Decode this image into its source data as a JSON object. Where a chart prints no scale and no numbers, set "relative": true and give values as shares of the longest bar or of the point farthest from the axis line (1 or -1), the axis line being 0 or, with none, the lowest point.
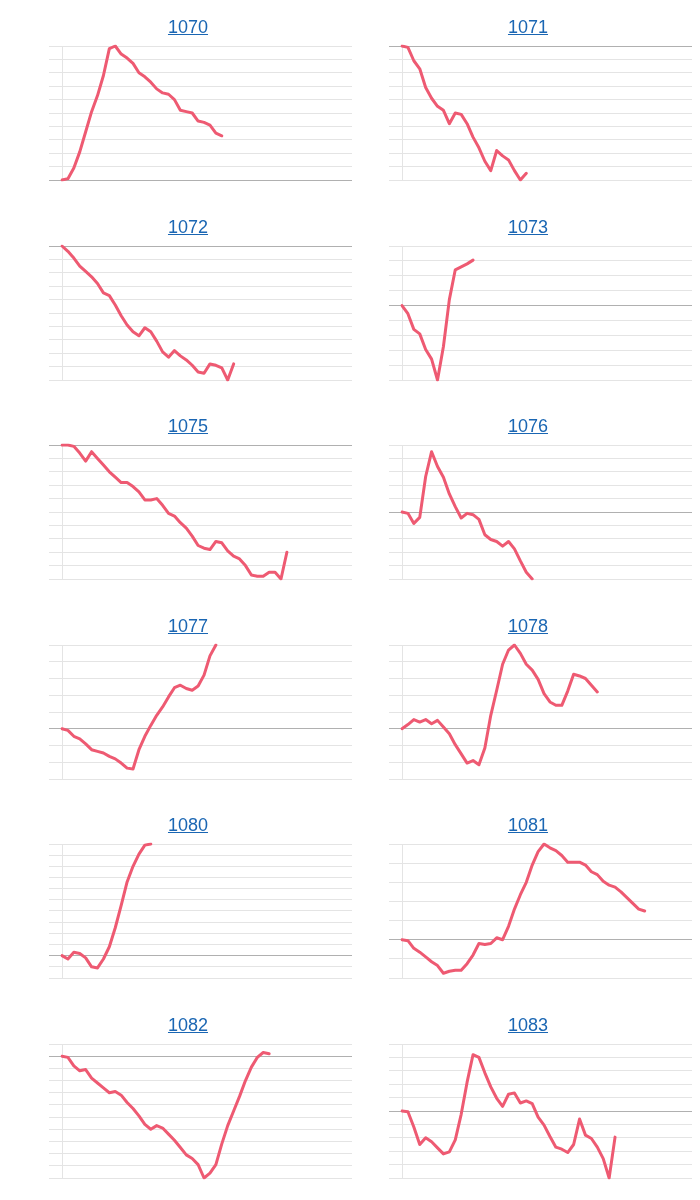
{
  "chart_data": [
    {
      "type": "line",
      "title": "1070",
      "relative": true,
      "grid": "y",
      "color": "#ee5a72",
      "categories": [
        null,
        null,
        null,
        null,
        null,
        null,
        null,
        null,
        null,
        null,
        null,
        null,
        null,
        null,
        null,
        null,
        null,
        null,
        null,
        null,
        null,
        null,
        null,
        null,
        null,
        null,
        null,
        null,
        null,
        null,
        null,
        null,
        null,
        null,
        null,
        null,
        null,
        null,
        null,
        null,
        null,
        null,
        null,
        null,
        null,
        null,
        null,
        null,
        null,
        null
      ],
      "values": [
        0,
        0.01,
        0.09,
        0.21,
        0.36,
        0.51,
        0.63,
        0.78,
        0.98,
        1.0,
        0.94,
        0.91,
        0.87,
        0.8,
        0.77,
        0.73,
        0.68,
        0.65,
        0.64,
        0.6,
        0.52,
        0.51,
        0.5,
        0.44,
        0.43,
        0.41,
        0.35,
        0.33,
        null,
        null,
        null,
        null,
        null,
        null,
        null,
        null,
        null,
        null,
        null,
        null,
        null,
        null,
        null,
        null,
        null,
        null,
        null,
        null,
        null,
        null
      ]
    },
    {
      "type": "line",
      "title": "1071",
      "relative": true,
      "grid": "y",
      "color": "#ee5a72",
      "categories": [
        null,
        null,
        null,
        null,
        null,
        null,
        null,
        null,
        null,
        null,
        null,
        null,
        null,
        null,
        null,
        null,
        null,
        null,
        null,
        null,
        null,
        null,
        null,
        null,
        null,
        null,
        null,
        null,
        null,
        null,
        null,
        null,
        null,
        null,
        null,
        null,
        null,
        null,
        null,
        null,
        null,
        null,
        null,
        null,
        null,
        null,
        null,
        null,
        null,
        null
      ],
      "values": [
        0,
        -0.01,
        -0.11,
        -0.17,
        -0.31,
        -0.39,
        -0.45,
        -0.48,
        -0.58,
        -0.5,
        -0.51,
        -0.58,
        -0.68,
        -0.76,
        -0.86,
        -0.93,
        -0.78,
        -0.82,
        -0.85,
        -0.93,
        -1.0,
        -0.95,
        null,
        null,
        null,
        null,
        null,
        null,
        null,
        null,
        null,
        null,
        null,
        null,
        null,
        null,
        null,
        null,
        null,
        null,
        null,
        null,
        null,
        null,
        null,
        null,
        null,
        null,
        null,
        null
      ]
    },
    {
      "type": "line",
      "title": "1072",
      "relative": true,
      "grid": "y",
      "color": "#ee5a72",
      "categories": [
        null,
        null,
        null,
        null,
        null,
        null,
        null,
        null,
        null,
        null,
        null,
        null,
        null,
        null,
        null,
        null,
        null,
        null,
        null,
        null,
        null,
        null,
        null,
        null,
        null,
        null,
        null,
        null,
        null,
        null,
        null,
        null,
        null,
        null,
        null,
        null,
        null,
        null,
        null,
        null,
        null,
        null,
        null,
        null,
        null,
        null,
        null,
        null,
        null,
        null
      ],
      "values": [
        0,
        -0.04,
        -0.09,
        -0.15,
        -0.19,
        -0.23,
        -0.28,
        -0.35,
        -0.37,
        -0.44,
        -0.52,
        -0.59,
        -0.64,
        -0.67,
        -0.61,
        -0.64,
        -0.71,
        -0.79,
        -0.83,
        -0.78,
        -0.82,
        -0.85,
        -0.89,
        -0.94,
        -0.95,
        -0.88,
        -0.89,
        -0.91,
        -1.0,
        -0.88,
        null,
        null,
        null,
        null,
        null,
        null,
        null,
        null,
        null,
        null,
        null,
        null,
        null,
        null,
        null,
        null,
        null,
        null,
        null,
        null
      ]
    },
    {
      "type": "line",
      "title": "1073",
      "relative": true,
      "grid": "y",
      "color": "#ee5a72",
      "categories": [
        null,
        null,
        null,
        null,
        null,
        null,
        null,
        null,
        null,
        null,
        null,
        null,
        null,
        null,
        null,
        null,
        null,
        null,
        null,
        null,
        null,
        null,
        null,
        null,
        null,
        null,
        null,
        null,
        null,
        null,
        null,
        null,
        null,
        null,
        null,
        null,
        null,
        null,
        null,
        null,
        null,
        null,
        null,
        null,
        null,
        null,
        null,
        null,
        null,
        null
      ],
      "values": [
        0,
        -0.11,
        -0.32,
        -0.38,
        -0.59,
        -0.72,
        -1.0,
        -0.55,
        0.08,
        0.48,
        0.52,
        0.56,
        0.61,
        null,
        null,
        null,
        null,
        null,
        null,
        null,
        null,
        null,
        null,
        null,
        null,
        null,
        null,
        null,
        null,
        null,
        null,
        null,
        null,
        null,
        null,
        null,
        null,
        null,
        null,
        null,
        null,
        null,
        null,
        null,
        null,
        null,
        null,
        null,
        null,
        null
      ]
    },
    {
      "type": "line",
      "title": "1075",
      "relative": true,
      "grid": "y",
      "color": "#ee5a72",
      "categories": [
        null,
        null,
        null,
        null,
        null,
        null,
        null,
        null,
        null,
        null,
        null,
        null,
        null,
        null,
        null,
        null,
        null,
        null,
        null,
        null,
        null,
        null,
        null,
        null,
        null,
        null,
        null,
        null,
        null,
        null,
        null,
        null,
        null,
        null,
        null,
        null,
        null,
        null,
        null,
        null,
        null,
        null,
        null,
        null,
        null,
        null,
        null,
        null,
        null,
        null
      ],
      "values": [
        0,
        0,
        -0.01,
        -0.06,
        -0.12,
        -0.05,
        -0.1,
        -0.15,
        -0.2,
        -0.24,
        -0.28,
        -0.28,
        -0.31,
        -0.35,
        -0.41,
        -0.41,
        -0.4,
        -0.45,
        -0.51,
        -0.53,
        -0.58,
        -0.62,
        -0.68,
        -0.75,
        -0.77,
        -0.78,
        -0.72,
        -0.73,
        -0.79,
        -0.83,
        -0.85,
        -0.9,
        -0.97,
        -0.98,
        -0.98,
        -0.95,
        -0.95,
        -1.0,
        -0.8,
        null,
        null,
        null,
        null,
        null,
        null,
        null,
        null,
        null,
        null,
        null
      ]
    },
    {
      "type": "line",
      "title": "1076",
      "relative": true,
      "grid": "y",
      "color": "#ee5a72",
      "categories": [
        null,
        null,
        null,
        null,
        null,
        null,
        null,
        null,
        null,
        null,
        null,
        null,
        null,
        null,
        null,
        null,
        null,
        null,
        null,
        null,
        null,
        null,
        null,
        null,
        null,
        null,
        null,
        null,
        null,
        null,
        null,
        null,
        null,
        null,
        null,
        null,
        null,
        null,
        null,
        null,
        null,
        null,
        null,
        null,
        null,
        null,
        null,
        null,
        null,
        null
      ],
      "values": [
        0,
        -0.02,
        -0.17,
        -0.08,
        0.53,
        0.9,
        0.68,
        0.52,
        0.27,
        0.08,
        -0.09,
        -0.02,
        -0.04,
        -0.11,
        -0.34,
        -0.41,
        -0.44,
        -0.51,
        -0.44,
        -0.55,
        -0.73,
        -0.9,
        -1.0,
        null,
        null,
        null,
        null,
        null,
        null,
        null,
        null,
        null,
        null,
        null,
        null,
        null,
        null,
        null,
        null,
        null,
        null,
        null,
        null,
        null,
        null,
        null,
        null,
        null,
        null,
        null
      ]
    },
    {
      "type": "line",
      "title": "1077",
      "relative": true,
      "grid": "y",
      "color": "#ee5a72",
      "categories": [
        null,
        null,
        null,
        null,
        null,
        null,
        null,
        null,
        null,
        null,
        null,
        null,
        null,
        null,
        null,
        null,
        null,
        null,
        null,
        null,
        null,
        null,
        null,
        null,
        null,
        null,
        null,
        null,
        null,
        null,
        null,
        null,
        null,
        null,
        null,
        null,
        null,
        null,
        null,
        null,
        null,
        null,
        null,
        null,
        null,
        null,
        null,
        null,
        null,
        null
      ],
      "values": [
        0,
        -0.02,
        -0.09,
        -0.12,
        -0.18,
        -0.25,
        -0.27,
        -0.29,
        -0.33,
        -0.36,
        -0.41,
        -0.47,
        -0.48,
        -0.25,
        -0.09,
        0.04,
        0.16,
        0.26,
        0.38,
        0.49,
        0.52,
        0.48,
        0.46,
        0.51,
        0.64,
        0.87,
        1.0,
        null,
        null,
        null,
        null,
        null,
        null,
        null,
        null,
        null,
        null,
        null,
        null,
        null,
        null,
        null,
        null,
        null,
        null,
        null,
        null,
        null,
        null,
        null
      ]
    },
    {
      "type": "line",
      "title": "1078",
      "relative": true,
      "grid": "y",
      "color": "#ee5a72",
      "categories": [
        null,
        null,
        null,
        null,
        null,
        null,
        null,
        null,
        null,
        null,
        null,
        null,
        null,
        null,
        null,
        null,
        null,
        null,
        null,
        null,
        null,
        null,
        null,
        null,
        null,
        null,
        null,
        null,
        null,
        null,
        null,
        null,
        null,
        null,
        null,
        null,
        null,
        null,
        null,
        null,
        null,
        null,
        null,
        null,
        null,
        null,
        null,
        null,
        null,
        null
      ],
      "values": [
        0,
        0.05,
        0.11,
        0.08,
        0.11,
        0.06,
        0.1,
        0.02,
        -0.06,
        -0.19,
        -0.3,
        -0.41,
        -0.38,
        -0.43,
        -0.23,
        0.16,
        0.46,
        0.77,
        0.94,
        1.0,
        0.9,
        0.77,
        0.7,
        0.59,
        0.42,
        0.32,
        0.28,
        0.28,
        0.45,
        0.65,
        0.63,
        0.6,
        0.52,
        0.44,
        null,
        null,
        null,
        null,
        null,
        null,
        null,
        null,
        null,
        null,
        null,
        null,
        null,
        null,
        null,
        null
      ]
    },
    {
      "type": "line",
      "title": "1080",
      "relative": true,
      "grid": "y",
      "color": "#ee5a72",
      "categories": [
        null,
        null,
        null,
        null,
        null,
        null,
        null,
        null,
        null,
        null,
        null,
        null,
        null,
        null,
        null,
        null,
        null,
        null,
        null,
        null,
        null,
        null,
        null,
        null,
        null,
        null,
        null,
        null,
        null,
        null,
        null,
        null,
        null,
        null,
        null,
        null,
        null,
        null,
        null,
        null,
        null,
        null,
        null,
        null,
        null,
        null,
        null,
        null,
        null,
        null
      ],
      "values": [
        0,
        -0.03,
        0.03,
        0.02,
        -0.02,
        -0.1,
        -0.11,
        -0.03,
        0.08,
        0.25,
        0.45,
        0.66,
        0.8,
        0.91,
        0.99,
        1.0,
        null,
        null,
        null,
        null,
        null,
        null,
        null,
        null,
        null,
        null,
        null,
        null,
        null,
        null,
        null,
        null,
        null,
        null,
        null,
        null,
        null,
        null,
        null,
        null,
        null,
        null,
        null,
        null,
        null,
        null,
        null,
        null,
        null,
        null
      ]
    },
    {
      "type": "line",
      "title": "1081",
      "relative": true,
      "grid": "y",
      "color": "#ee5a72",
      "categories": [
        null,
        null,
        null,
        null,
        null,
        null,
        null,
        null,
        null,
        null,
        null,
        null,
        null,
        null,
        null,
        null,
        null,
        null,
        null,
        null,
        null,
        null,
        null,
        null,
        null,
        null,
        null,
        null,
        null,
        null,
        null,
        null,
        null,
        null,
        null,
        null,
        null,
        null,
        null,
        null,
        null,
        null,
        null,
        null,
        null,
        null,
        null,
        null,
        null,
        null
      ],
      "values": [
        0,
        -0.01,
        -0.09,
        -0.13,
        -0.18,
        -0.23,
        -0.27,
        -0.35,
        -0.33,
        -0.32,
        -0.32,
        -0.25,
        -0.16,
        -0.04,
        -0.05,
        -0.04,
        0.02,
        0,
        0.14,
        0.32,
        0.47,
        0.6,
        0.78,
        0.92,
        1.0,
        0.96,
        0.93,
        0.88,
        0.81,
        0.81,
        0.81,
        0.78,
        0.71,
        0.68,
        0.61,
        0.57,
        0.55,
        0.5,
        0.44,
        0.38,
        0.32,
        0.3,
        null,
        null,
        null,
        null,
        null,
        null,
        null,
        null
      ]
    },
    {
      "type": "line",
      "title": "1082",
      "relative": true,
      "grid": "y",
      "color": "#ee5a72",
      "categories": [
        null,
        null,
        null,
        null,
        null,
        null,
        null,
        null,
        null,
        null,
        null,
        null,
        null,
        null,
        null,
        null,
        null,
        null,
        null,
        null,
        null,
        null,
        null,
        null,
        null,
        null,
        null,
        null,
        null,
        null,
        null,
        null,
        null,
        null,
        null,
        null,
        null,
        null,
        null,
        null,
        null,
        null,
        null,
        null,
        null,
        null,
        null,
        null,
        null,
        null
      ],
      "values": [
        0,
        -0.01,
        -0.08,
        -0.12,
        -0.11,
        -0.18,
        -0.22,
        -0.26,
        -0.3,
        -0.29,
        -0.32,
        -0.38,
        -0.43,
        -0.49,
        -0.56,
        -0.6,
        -0.57,
        -0.59,
        -0.64,
        -0.69,
        -0.75,
        -0.81,
        -0.84,
        -0.89,
        -1.0,
        -0.96,
        -0.89,
        -0.72,
        -0.57,
        -0.45,
        -0.33,
        -0.2,
        -0.09,
        -0.01,
        0.03,
        0.02,
        null,
        null,
        null,
        null,
        null,
        null,
        null,
        null,
        null,
        null,
        null,
        null,
        null,
        null
      ]
    },
    {
      "type": "line",
      "title": "1083",
      "relative": true,
      "grid": "y",
      "color": "#ee5a72",
      "categories": [
        null,
        null,
        null,
        null,
        null,
        null,
        null,
        null,
        null,
        null,
        null,
        null,
        null,
        null,
        null,
        null,
        null,
        null,
        null,
        null,
        null,
        null,
        null,
        null,
        null,
        null,
        null,
        null,
        null,
        null,
        null,
        null,
        null,
        null,
        null,
        null,
        null,
        null,
        null,
        null,
        null,
        null,
        null,
        null,
        null,
        null,
        null,
        null,
        null,
        null
      ],
      "values": [
        0,
        -0.01,
        -0.24,
        -0.5,
        -0.4,
        -0.46,
        -0.55,
        -0.64,
        -0.61,
        -0.43,
        -0.05,
        0.43,
        0.84,
        0.8,
        0.57,
        0.36,
        0.19,
        0.07,
        0.25,
        0.27,
        0.12,
        0.15,
        0.11,
        -0.09,
        -0.21,
        -0.38,
        -0.54,
        -0.57,
        -0.62,
        -0.5,
        -0.12,
        -0.36,
        -0.41,
        -0.54,
        -0.71,
        -1.0,
        -0.39,
        null,
        null,
        null,
        null,
        null,
        null,
        null,
        null,
        null,
        null,
        null,
        null,
        null
      ]
    }
  ]
}
